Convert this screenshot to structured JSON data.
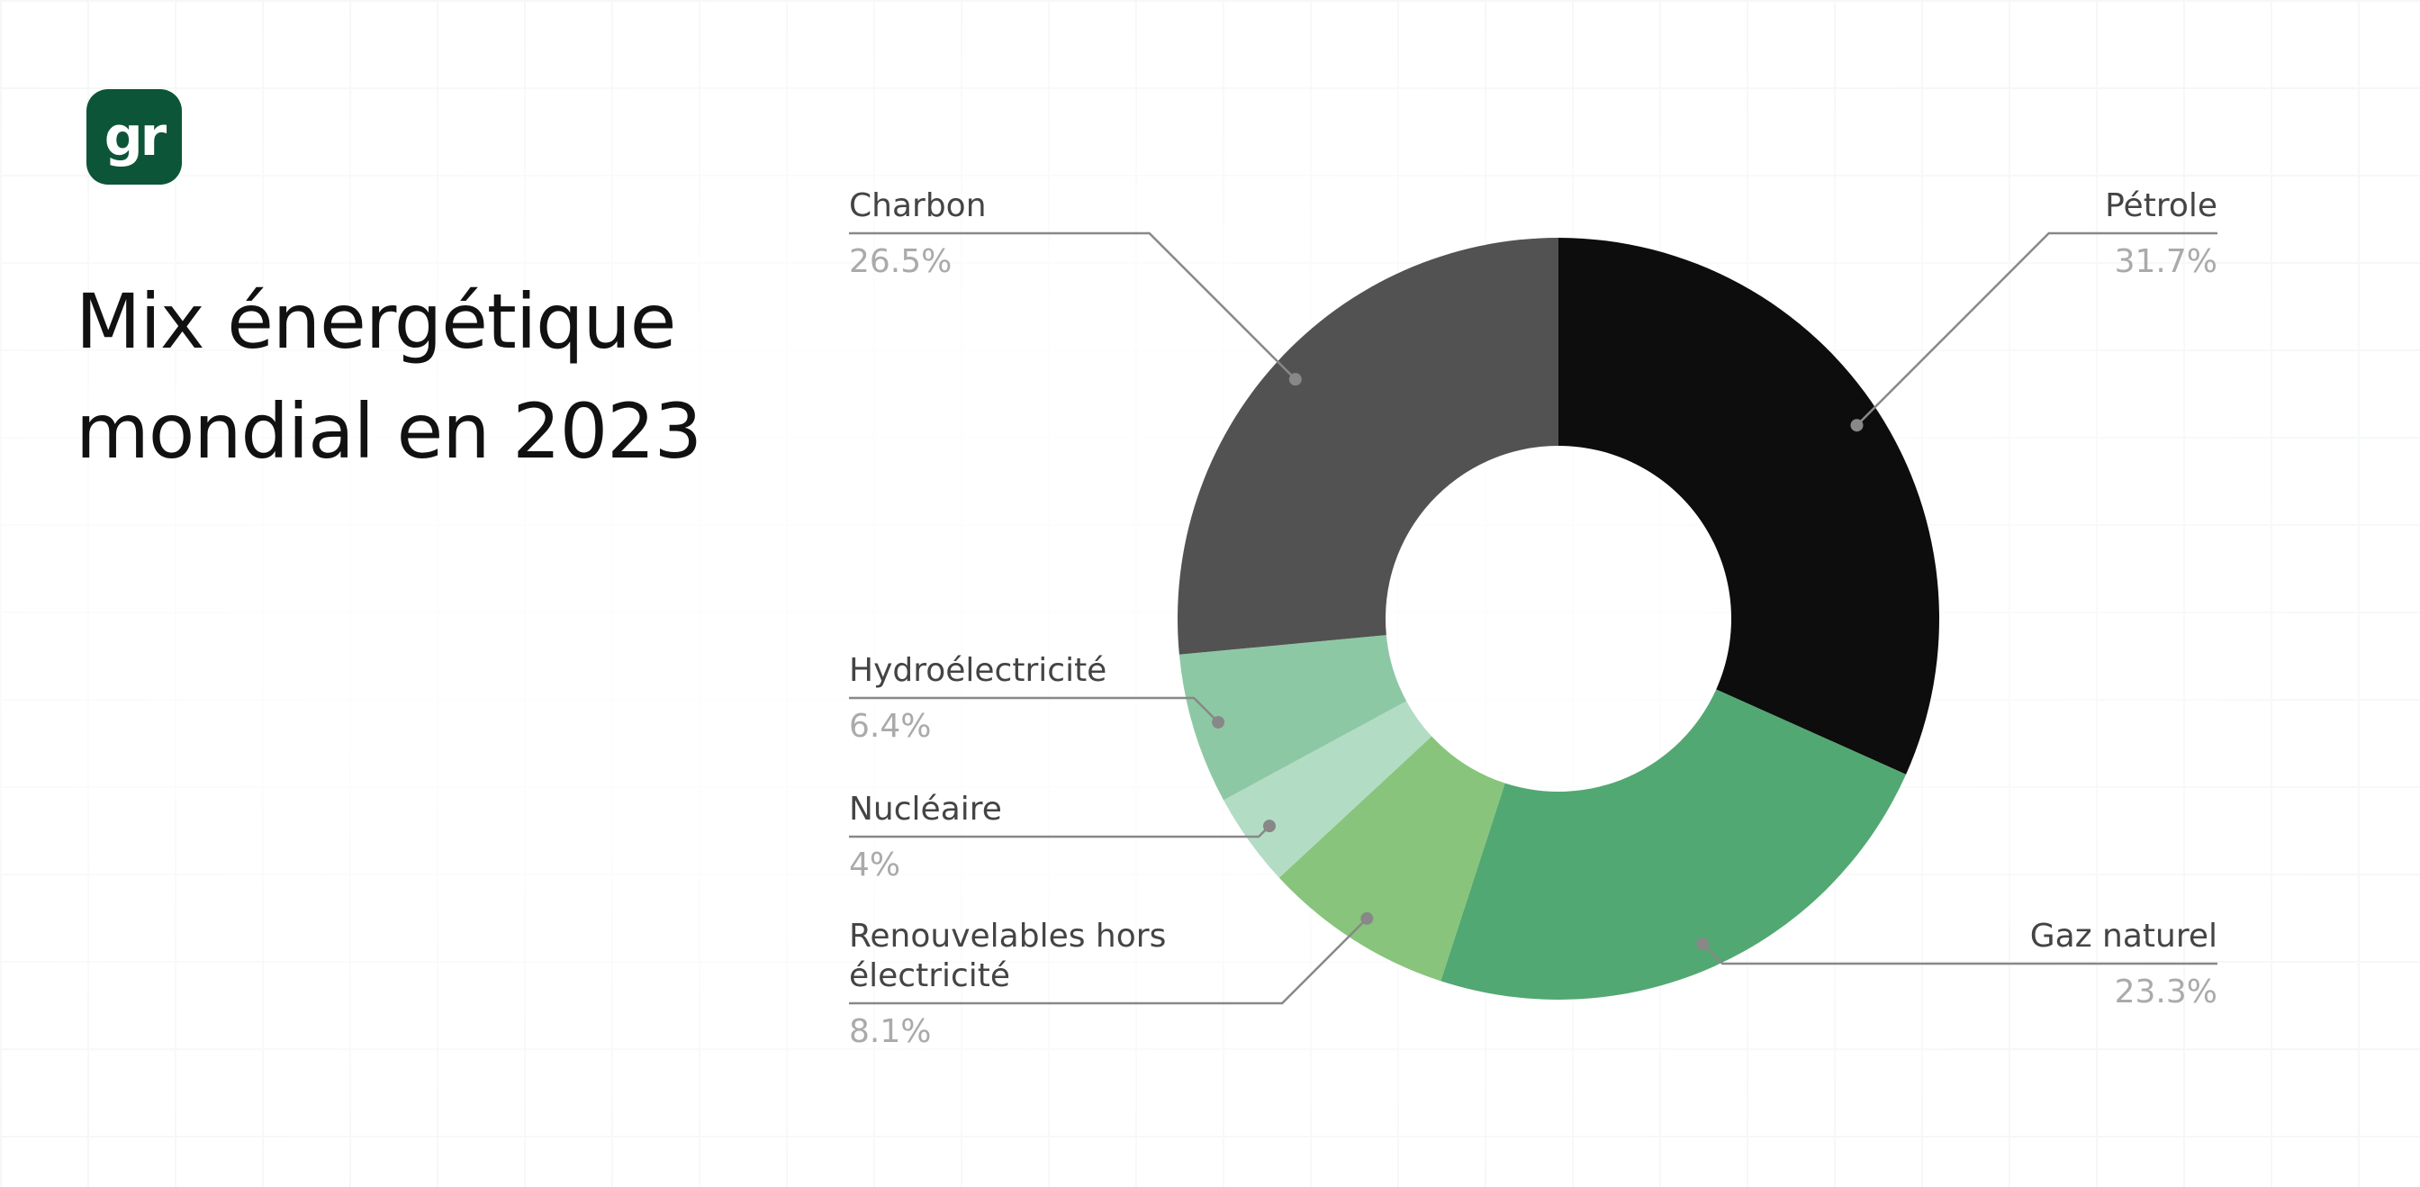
{
  "logo": "gr",
  "chart_data": {
    "type": "donut",
    "title": "Mix énergétique mondial en 2023",
    "categories": [
      "Pétrole",
      "Gaz naturel",
      "Renouvelables hors électricité",
      "Nucléaire",
      "Hydroélectricité",
      "Charbon"
    ],
    "values": [
      31.7,
      23.3,
      8.1,
      4,
      6.4,
      26.5
    ],
    "value_labels": [
      "31.7%",
      "23.3%",
      "8.1%",
      "4%",
      "6.4%",
      "26.5%"
    ],
    "colors": [
      "#0d0d0d",
      "#52a872",
      "#88c47c",
      "#b3dcc4",
      "#8dc8a5",
      "#525252"
    ]
  }
}
